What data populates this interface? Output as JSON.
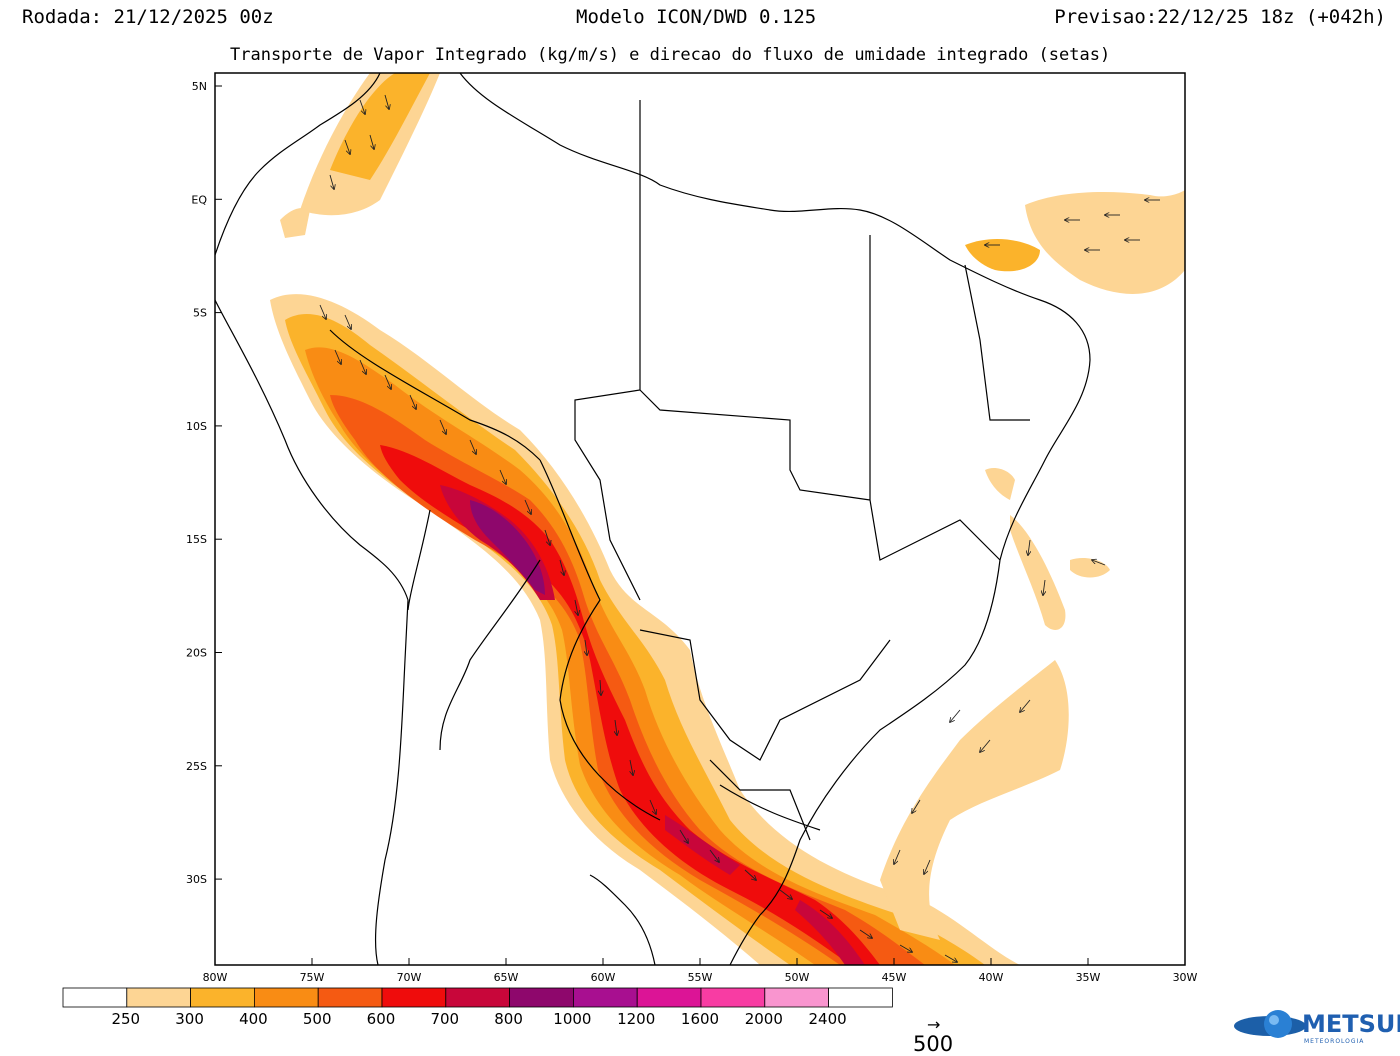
{
  "header": {
    "run": "Rodada: 21/12/2025 00z",
    "model": "Modelo ICON/DWD 0.125",
    "forecast": "Previsao:22/12/25 18z (+042h)"
  },
  "subtitle": "Transporte de Vapor Integrado (kg/m/s) e direcao do fluxo de umidade integrado (setas)",
  "lat_labels": [
    "5N",
    "EQ",
    "5S",
    "10S",
    "15S",
    "20S",
    "25S",
    "30S"
  ],
  "lon_labels": [
    "80W",
    "75W",
    "70W",
    "65W",
    "60W",
    "55W",
    "50W",
    "45W",
    "40W",
    "35W",
    "30W"
  ],
  "colorbar": {
    "labels": [
      "250",
      "300",
      "400",
      "500",
      "600",
      "700",
      "800",
      "1000",
      "1200",
      "1600",
      "2000",
      "2400"
    ],
    "colors": [
      "#ffffff",
      "#fdd594",
      "#fbb32b",
      "#f98c14",
      "#f55a12",
      "#ef0c0c",
      "#c8063a",
      "#8e076c",
      "#a80f90",
      "#dc1496",
      "#f83ca3",
      "#f995cf",
      "#ffffff"
    ]
  },
  "reference_vector": {
    "arrow": "→",
    "value": "500"
  },
  "logo": {
    "text": "METSUL",
    "subtext": "METEOROLOGIA"
  }
}
